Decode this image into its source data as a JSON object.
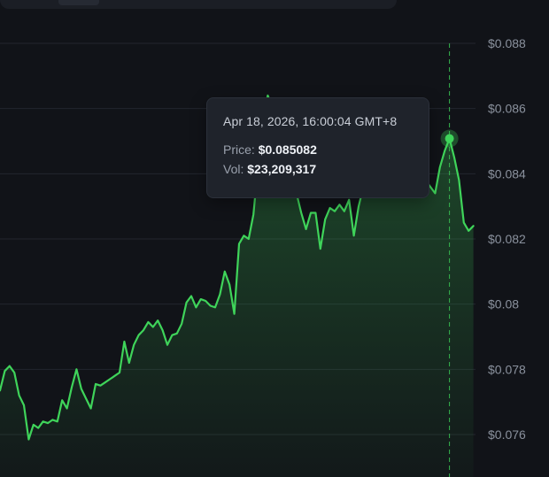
{
  "chart_data": {
    "type": "area",
    "y_ticks": [
      "$0.088",
      "$0.086",
      "$0.084",
      "$0.082",
      "$0.08",
      "$0.078",
      "$0.076"
    ],
    "y_tick_values": [
      0.088,
      0.086,
      0.084,
      0.082,
      0.08,
      0.078,
      0.076
    ],
    "ylim": [
      0.0749,
      0.0891
    ],
    "grid": true,
    "line_color": "#3fd45a",
    "series": [
      {
        "values": [
          0.07735,
          0.07795,
          0.0781,
          0.0779,
          0.0772,
          0.0769,
          0.07585,
          0.0763,
          0.0762,
          0.0764,
          0.07635,
          0.07645,
          0.0764,
          0.07705,
          0.0768,
          0.07745,
          0.078,
          0.0774,
          0.0771,
          0.0768,
          0.07755,
          0.0775,
          0.0776,
          0.0777,
          0.0778,
          0.0779,
          0.07885,
          0.0782,
          0.07875,
          0.07905,
          0.0792,
          0.07945,
          0.0793,
          0.0795,
          0.0792,
          0.07875,
          0.07905,
          0.0791,
          0.0794,
          0.08005,
          0.08025,
          0.0799,
          0.08015,
          0.0801,
          0.07995,
          0.0799,
          0.0803,
          0.081,
          0.0806,
          0.0797,
          0.08185,
          0.0821,
          0.082,
          0.08275,
          0.0843,
          0.0856,
          0.0864,
          0.086,
          0.08525,
          0.08435,
          0.08375,
          0.0835,
          0.0834,
          0.0828,
          0.0823,
          0.0828,
          0.0828,
          0.0817,
          0.0826,
          0.08295,
          0.08285,
          0.08305,
          0.08285,
          0.0832,
          0.0821,
          0.083,
          0.0836,
          0.084,
          0.0843,
          0.0843,
          0.0842,
          0.0844,
          0.08415,
          0.08425,
          0.0841,
          0.08395,
          0.0838,
          0.084,
          0.0834,
          0.0838,
          0.0836,
          0.0834,
          0.0842,
          0.0847,
          0.08508,
          0.0845,
          0.0838,
          0.0825,
          0.08225,
          0.0824
        ]
      }
    ],
    "highlight_index": 94
  },
  "tooltip": {
    "date": "Apr 18, 2026, 16:00:04 GMT+8",
    "price_label": "Price:",
    "price_value": "$0.085082",
    "vol_label": "Vol:",
    "vol_value": "$23,209,317"
  },
  "colors": {
    "background": "#111318",
    "grid": "#22262e",
    "tooltip_bg": "#1f232b",
    "crosshair": "#36b44e"
  }
}
